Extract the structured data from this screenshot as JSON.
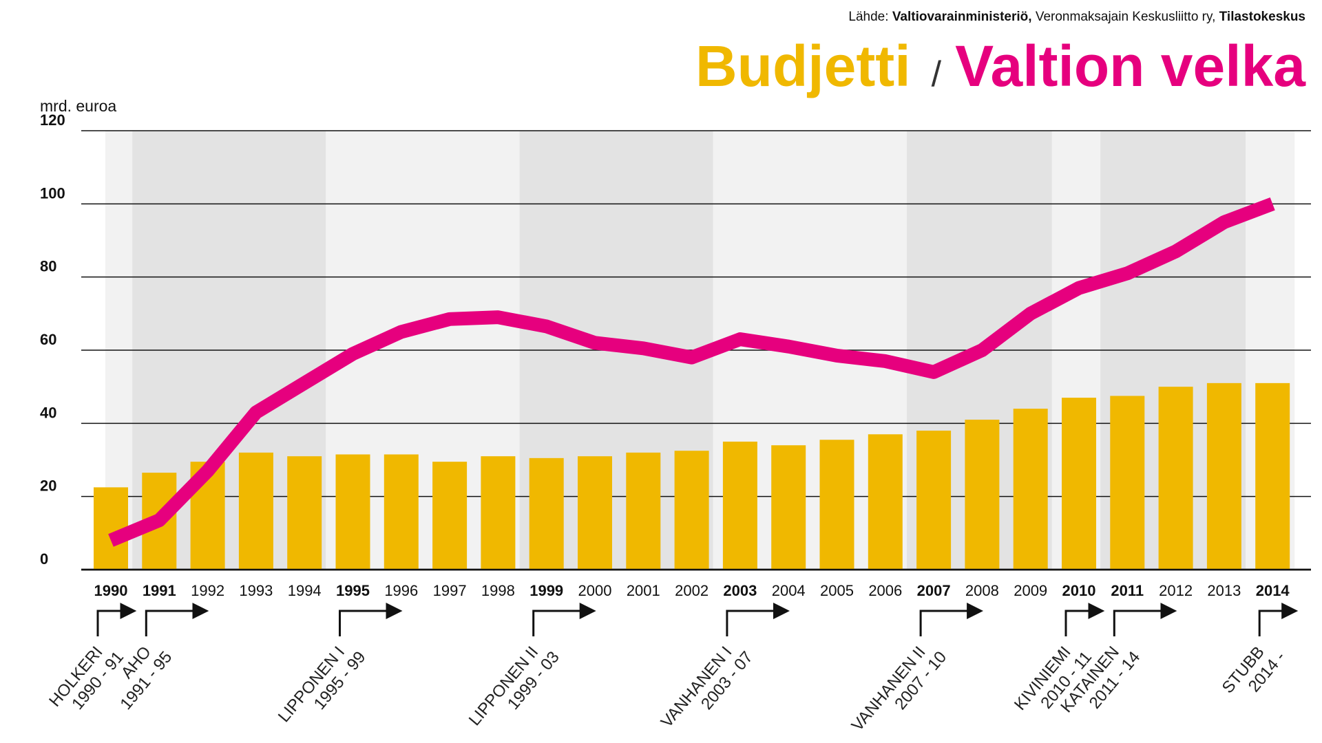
{
  "chart_data": {
    "type": "bar",
    "source": [
      "Lähde:",
      "Valtiovarainministeriö,",
      "Veronmaksajain Keskusliitto ry,",
      "Tilastokeskus"
    ],
    "legend_separator": "/",
    "y_label": "mrd. euroa",
    "categories": [
      "1990",
      "1991",
      "1992",
      "1993",
      "1994",
      "1995",
      "1996",
      "1997",
      "1998",
      "1999",
      "2000",
      "2001",
      "2002",
      "2003",
      "2004",
      "2005",
      "2006",
      "2007",
      "2008",
      "2009",
      "2010",
      "2011",
      "2012",
      "2013",
      "2014"
    ],
    "series": [
      {
        "name": "Budjetti",
        "color": "#f0b800",
        "type": "bar",
        "values": [
          22.5,
          26.5,
          29.5,
          32,
          31,
          31.5,
          31.5,
          29.5,
          31,
          30.5,
          31,
          32,
          32.5,
          35,
          34,
          35.5,
          37,
          38,
          41,
          44,
          47,
          47.5,
          50,
          51,
          51
        ]
      },
      {
        "name": "Valtion velka",
        "color": "#e6007e",
        "type": "line",
        "values": [
          8,
          13.5,
          27,
          43,
          51,
          59,
          65,
          68.5,
          69,
          66.5,
          62,
          60.5,
          58,
          63,
          61,
          58.5,
          57,
          54,
          60,
          70,
          77,
          81,
          87,
          95,
          100
        ]
      }
    ],
    "ylim": [
      0,
      120
    ],
    "yticks": [
      0,
      20,
      40,
      60,
      80,
      100,
      120
    ],
    "grid": true,
    "governments": [
      {
        "name": "HOLKERI",
        "years": "1990 - 91",
        "start": "1990"
      },
      {
        "name": "AHO",
        "years": "1991 - 95",
        "start": "1991"
      },
      {
        "name": "LIPPONEN I",
        "years": "1995 - 99",
        "start": "1995"
      },
      {
        "name": "LIPPONEN II",
        "years": "1999 - 03",
        "start": "1999"
      },
      {
        "name": "VANHANEN I",
        "years": "2003 - 07",
        "start": "2003"
      },
      {
        "name": "VANHANEN II",
        "years": "2007 - 10",
        "start": "2007"
      },
      {
        "name": "KIVINIEMI",
        "years": "2010 - 11",
        "start": "2010"
      },
      {
        "name": "KATAINEN",
        "years": "2011 - 14",
        "start": "2011"
      },
      {
        "name": "STUBB",
        "years": "2014 -",
        "start": "2014"
      }
    ]
  }
}
